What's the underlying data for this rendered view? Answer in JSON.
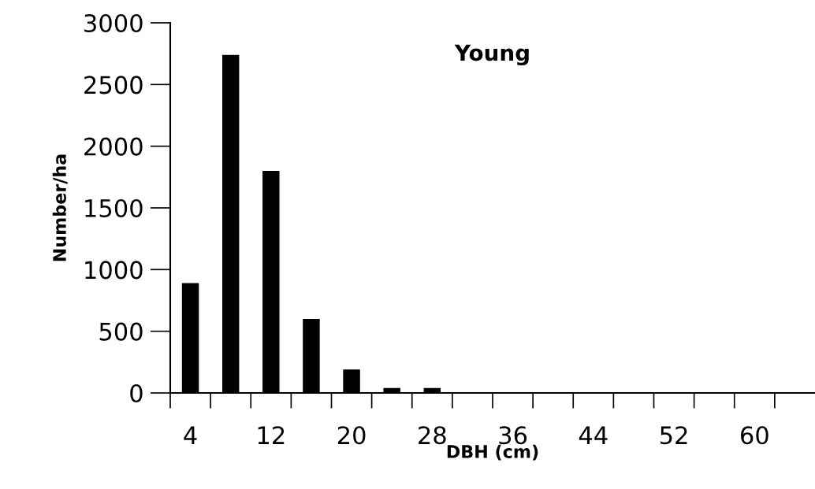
{
  "chart_data": {
    "type": "bar",
    "title": "Young",
    "xlabel": "DBH (cm)",
    "ylabel": "Number/ha",
    "categories": [
      "4",
      null,
      "12",
      null,
      "20",
      null,
      "28",
      null,
      "36",
      null,
      "44",
      null,
      "52",
      null,
      "60",
      null
    ],
    "values": [
      890,
      2740,
      1800,
      600,
      190,
      40,
      40,
      0,
      0,
      0,
      0,
      0,
      0,
      0,
      0,
      0
    ],
    "color": "#000000",
    "ylim": [
      0,
      3000
    ],
    "yticks": [
      0,
      500,
      1000,
      1500,
      2000,
      2500,
      3000
    ],
    "grid": false
  }
}
